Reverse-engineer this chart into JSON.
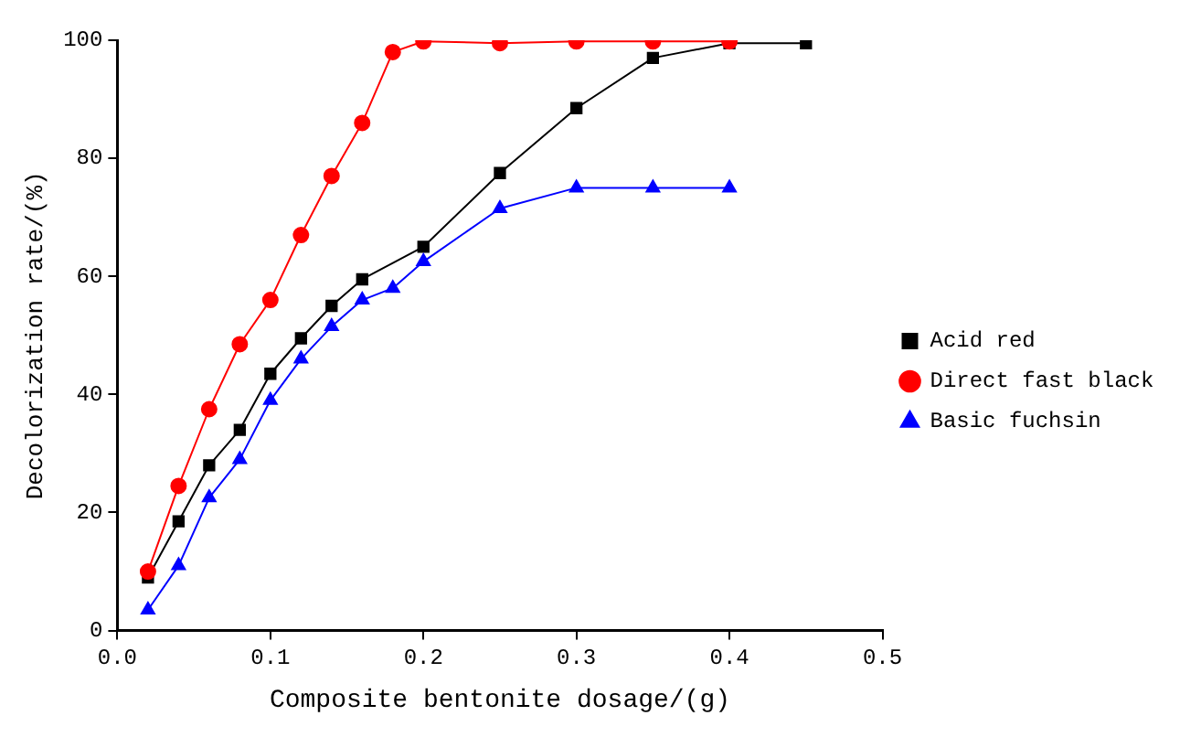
{
  "chart_data": {
    "type": "line",
    "xlabel": "Composite bentonite dosage/(g)",
    "ylabel": "Decolorization rate/(%)",
    "xlim": [
      0,
      0.5
    ],
    "xticks": [
      {
        "value": 0,
        "label": "0.0"
      },
      0.1,
      0.2,
      0.3,
      0.4,
      0.5
    ],
    "ylim": [
      0,
      100
    ],
    "yticks": [
      0,
      20,
      40,
      60,
      80,
      100
    ],
    "grid": false,
    "legend": "right",
    "series": [
      {
        "name": "Acid red",
        "color": "#000000",
        "marker": "square",
        "x": [
          0.02,
          0.04,
          0.06,
          0.08,
          0.1,
          0.12,
          0.14,
          0.16,
          0.2,
          0.25,
          0.3,
          0.35,
          0.4,
          0.45
        ],
        "values": [
          9,
          18.5,
          28,
          34,
          43.5,
          49.5,
          55,
          59.5,
          65,
          77.5,
          88.5,
          97,
          99.5,
          99.5
        ]
      },
      {
        "name": "Direct fast black",
        "color": "#ff0000",
        "marker": "circle",
        "x": [
          0.02,
          0.04,
          0.06,
          0.08,
          0.1,
          0.12,
          0.14,
          0.16,
          0.18,
          0.2,
          0.25,
          0.3,
          0.35,
          0.4
        ],
        "values": [
          10,
          24.5,
          37.5,
          48.5,
          56,
          67,
          77,
          86,
          98,
          99.8,
          99.5,
          99.8,
          99.8,
          99.8
        ]
      },
      {
        "name": "Basic fuchsin",
        "color": "#0000ff",
        "marker": "triangle",
        "x": [
          0.02,
          0.04,
          0.06,
          0.08,
          0.1,
          0.12,
          0.14,
          0.16,
          0.18,
          0.2,
          0.25,
          0.3,
          0.35,
          0.4
        ],
        "values": [
          3.5,
          11,
          22.5,
          29,
          39,
          46,
          51.5,
          56,
          58,
          62.5,
          71.5,
          75,
          75,
          75
        ]
      }
    ]
  }
}
